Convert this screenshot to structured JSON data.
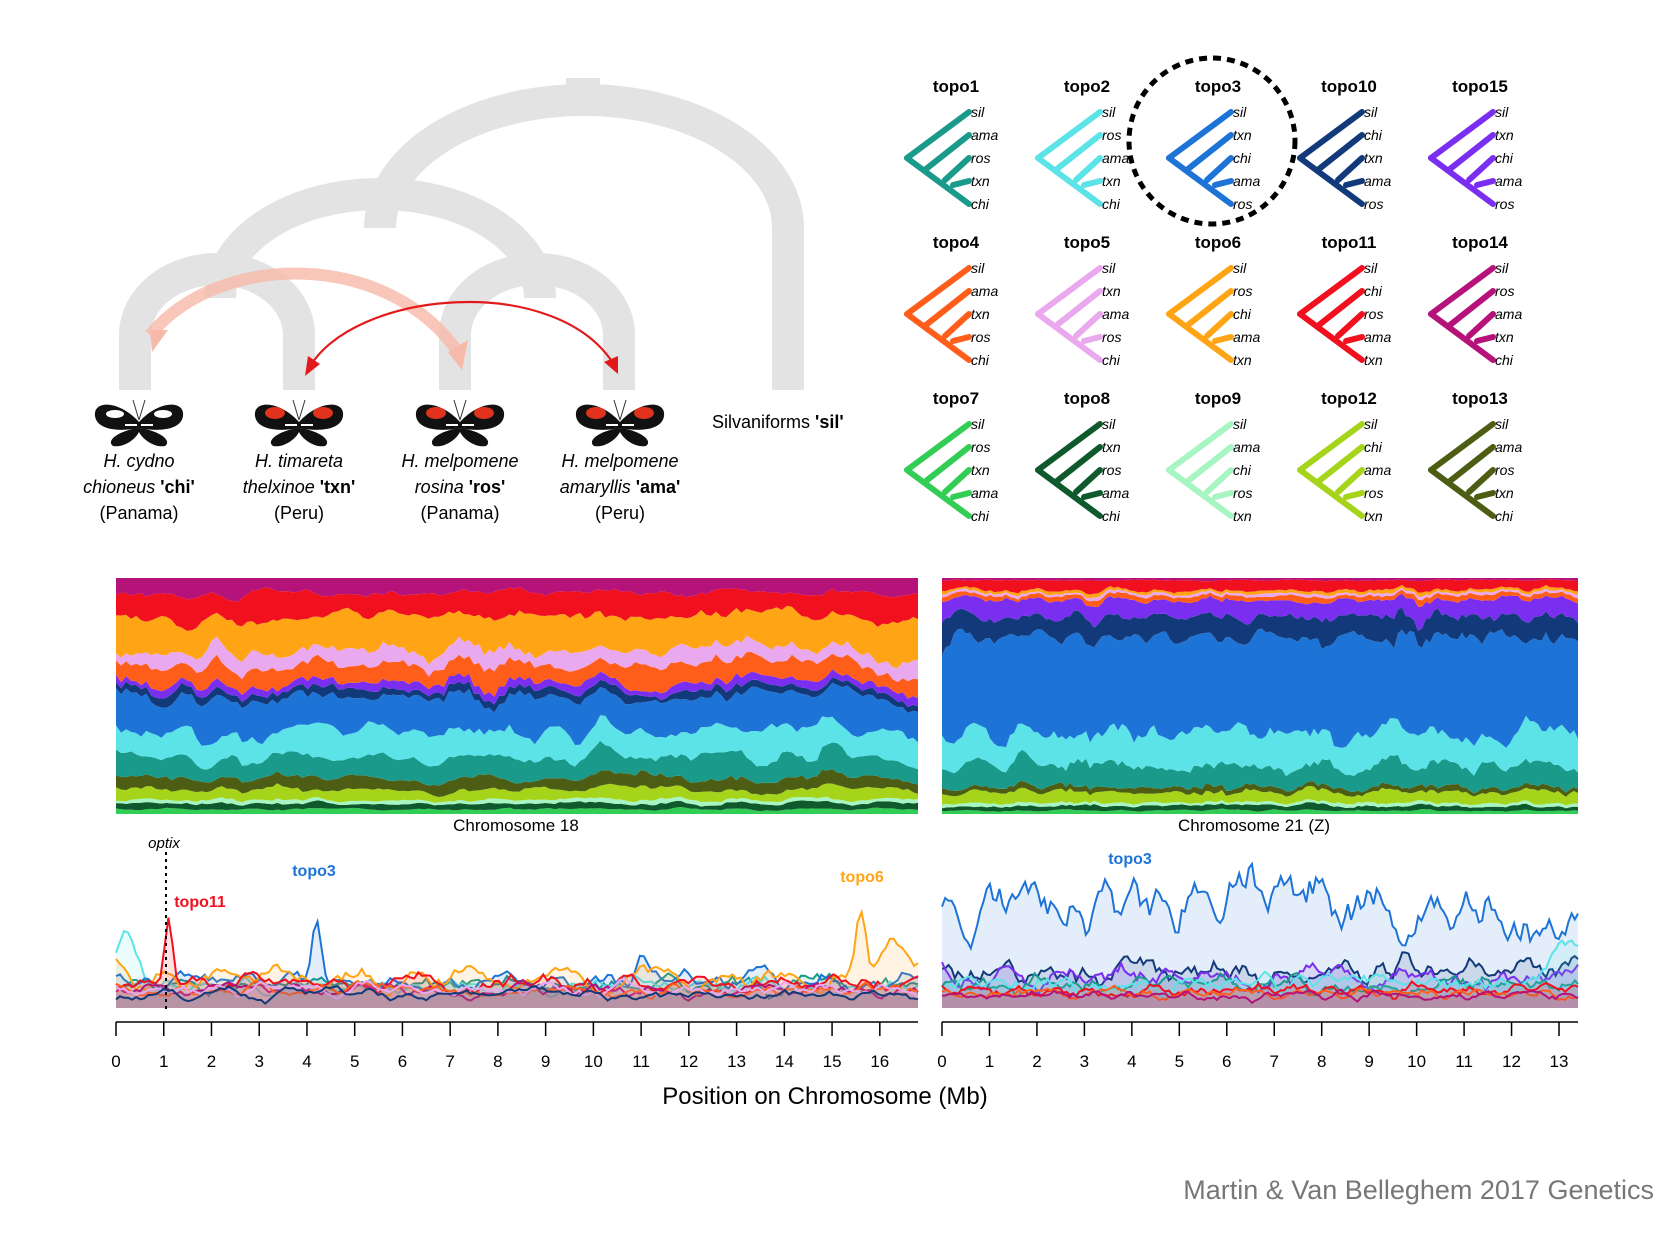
{
  "credit": "Martin & Van Belleghem 2017 Genetics",
  "species_tree": {
    "taxa": [
      {
        "name1": "H. cydno",
        "name2": "chioneus",
        "code": "'chi'",
        "place": "(Panama)",
        "wing": "#111111"
      },
      {
        "name1": "H. timareta",
        "name2": "thelxinoe",
        "code": "'txn'",
        "place": "(Peru)",
        "wing": "#e0321c"
      },
      {
        "name1": "H. melpomene",
        "name2": "rosina",
        "code": "'ros'",
        "place": "(Panama)",
        "wing": "#e0321c"
      },
      {
        "name1": "H. melpomene",
        "name2": "amaryllis",
        "code": "'ama'",
        "place": "(Peru)",
        "wing": "#e0321c"
      }
    ],
    "outgroup": {
      "name": "Silvaniforms",
      "code": "'sil'"
    },
    "branch_color": "#e3e3e3",
    "gene_flow_colors": [
      "#f7b9a8",
      "#e31a1c"
    ]
  },
  "topologies": [
    {
      "name": "topo1",
      "color": "#1a9a8a",
      "tips": [
        "sil",
        "ama",
        "ros",
        "txn",
        "chi"
      ]
    },
    {
      "name": "topo2",
      "color": "#5ce3e8",
      "tips": [
        "sil",
        "ros",
        "ama",
        "txn",
        "chi"
      ]
    },
    {
      "name": "topo3",
      "color": "#1e74d6",
      "tips": [
        "sil",
        "txn",
        "chi",
        "ama",
        "ros"
      ],
      "highlight": true
    },
    {
      "name": "topo10",
      "color": "#123a7a",
      "tips": [
        "sil",
        "chi",
        "txn",
        "ama",
        "ros"
      ]
    },
    {
      "name": "topo15",
      "color": "#7a2ef0",
      "tips": [
        "sil",
        "txn",
        "chi",
        "ama",
        "ros"
      ]
    },
    {
      "name": "topo4",
      "color": "#ff5e1a",
      "tips": [
        "sil",
        "ama",
        "txn",
        "ros",
        "chi"
      ]
    },
    {
      "name": "topo5",
      "color": "#eaa8ee",
      "tips": [
        "sil",
        "txn",
        "ama",
        "ros",
        "chi"
      ]
    },
    {
      "name": "topo6",
      "color": "#ffa515",
      "tips": [
        "sil",
        "ros",
        "chi",
        "ama",
        "txn"
      ]
    },
    {
      "name": "topo11",
      "color": "#f0101e",
      "tips": [
        "sil",
        "chi",
        "ros",
        "ama",
        "txn"
      ]
    },
    {
      "name": "topo14",
      "color": "#b5127a",
      "tips": [
        "sil",
        "ros",
        "ama",
        "txn",
        "chi"
      ]
    },
    {
      "name": "topo7",
      "color": "#32cd54",
      "tips": [
        "sil",
        "ros",
        "txn",
        "ama",
        "chi"
      ]
    },
    {
      "name": "topo8",
      "color": "#0e5a2c",
      "tips": [
        "sil",
        "txn",
        "ros",
        "ama",
        "chi"
      ]
    },
    {
      "name": "topo9",
      "color": "#a6f5c2",
      "tips": [
        "sil",
        "ama",
        "chi",
        "ros",
        "txn"
      ]
    },
    {
      "name": "topo12",
      "color": "#a6d41a",
      "tips": [
        "sil",
        "chi",
        "ama",
        "ros",
        "txn"
      ]
    },
    {
      "name": "topo13",
      "color": "#4d5e14",
      "tips": [
        "sil",
        "ama",
        "ros",
        "txn",
        "chi"
      ]
    }
  ],
  "chart_data": [
    {
      "type": "area",
      "title": "Chromosome 18",
      "description_series_order": [
        "topo7",
        "topo8",
        "topo9",
        "topo12",
        "topo13",
        "topo1",
        "topo2",
        "topo3",
        "topo10",
        "topo15",
        "topo4",
        "topo5",
        "topo6",
        "topo11",
        "topo14"
      ],
      "x_range_mb": [
        0,
        16.8
      ],
      "weights_sum": 1
    },
    {
      "type": "area",
      "title": "Chromosome 21 (Z)",
      "x_range_mb": [
        0,
        13.4
      ],
      "weights_sum": 1
    },
    {
      "type": "line",
      "panel": "chr18",
      "xlabel": "Position on Chromosome (Mb)",
      "x_ticks": [
        "0",
        "1",
        "2",
        "3",
        "4",
        "5",
        "6",
        "7",
        "8",
        "9",
        "10",
        "11",
        "12",
        "13",
        "14",
        "15",
        "16"
      ],
      "annotations": [
        {
          "label": "optix",
          "x": 1.05
        },
        {
          "label": "topo11",
          "x": 1.1,
          "color": "#f0101e"
        },
        {
          "label": "topo3",
          "x": 4.2,
          "color": "#1e74d6"
        },
        {
          "label": "topo6",
          "x": 15.6,
          "color": "#ffa515"
        }
      ],
      "peaks": [
        {
          "series": "topo11",
          "x": 1.1,
          "y": 0.9
        },
        {
          "series": "topo3",
          "x": 4.2,
          "y": 1.0
        },
        {
          "series": "topo6",
          "x": 15.6,
          "y": 0.95
        }
      ]
    },
    {
      "type": "line",
      "panel": "chr21",
      "x_ticks": [
        "0",
        "1",
        "2",
        "3",
        "4",
        "5",
        "6",
        "7",
        "8",
        "9",
        "10",
        "11",
        "12",
        "13"
      ],
      "annotations": [
        {
          "label": "topo3",
          "x": 4.0,
          "color": "#1e74d6"
        }
      ]
    }
  ],
  "labels": {
    "chr18": "Chromosome 18",
    "chr21": "Chromosome 21 (Z)",
    "xlabel": "Position on Chromosome (Mb)",
    "optix": "optix",
    "topo11": "topo11",
    "topo3a": "topo3",
    "topo6": "topo6",
    "topo3b": "topo3"
  }
}
